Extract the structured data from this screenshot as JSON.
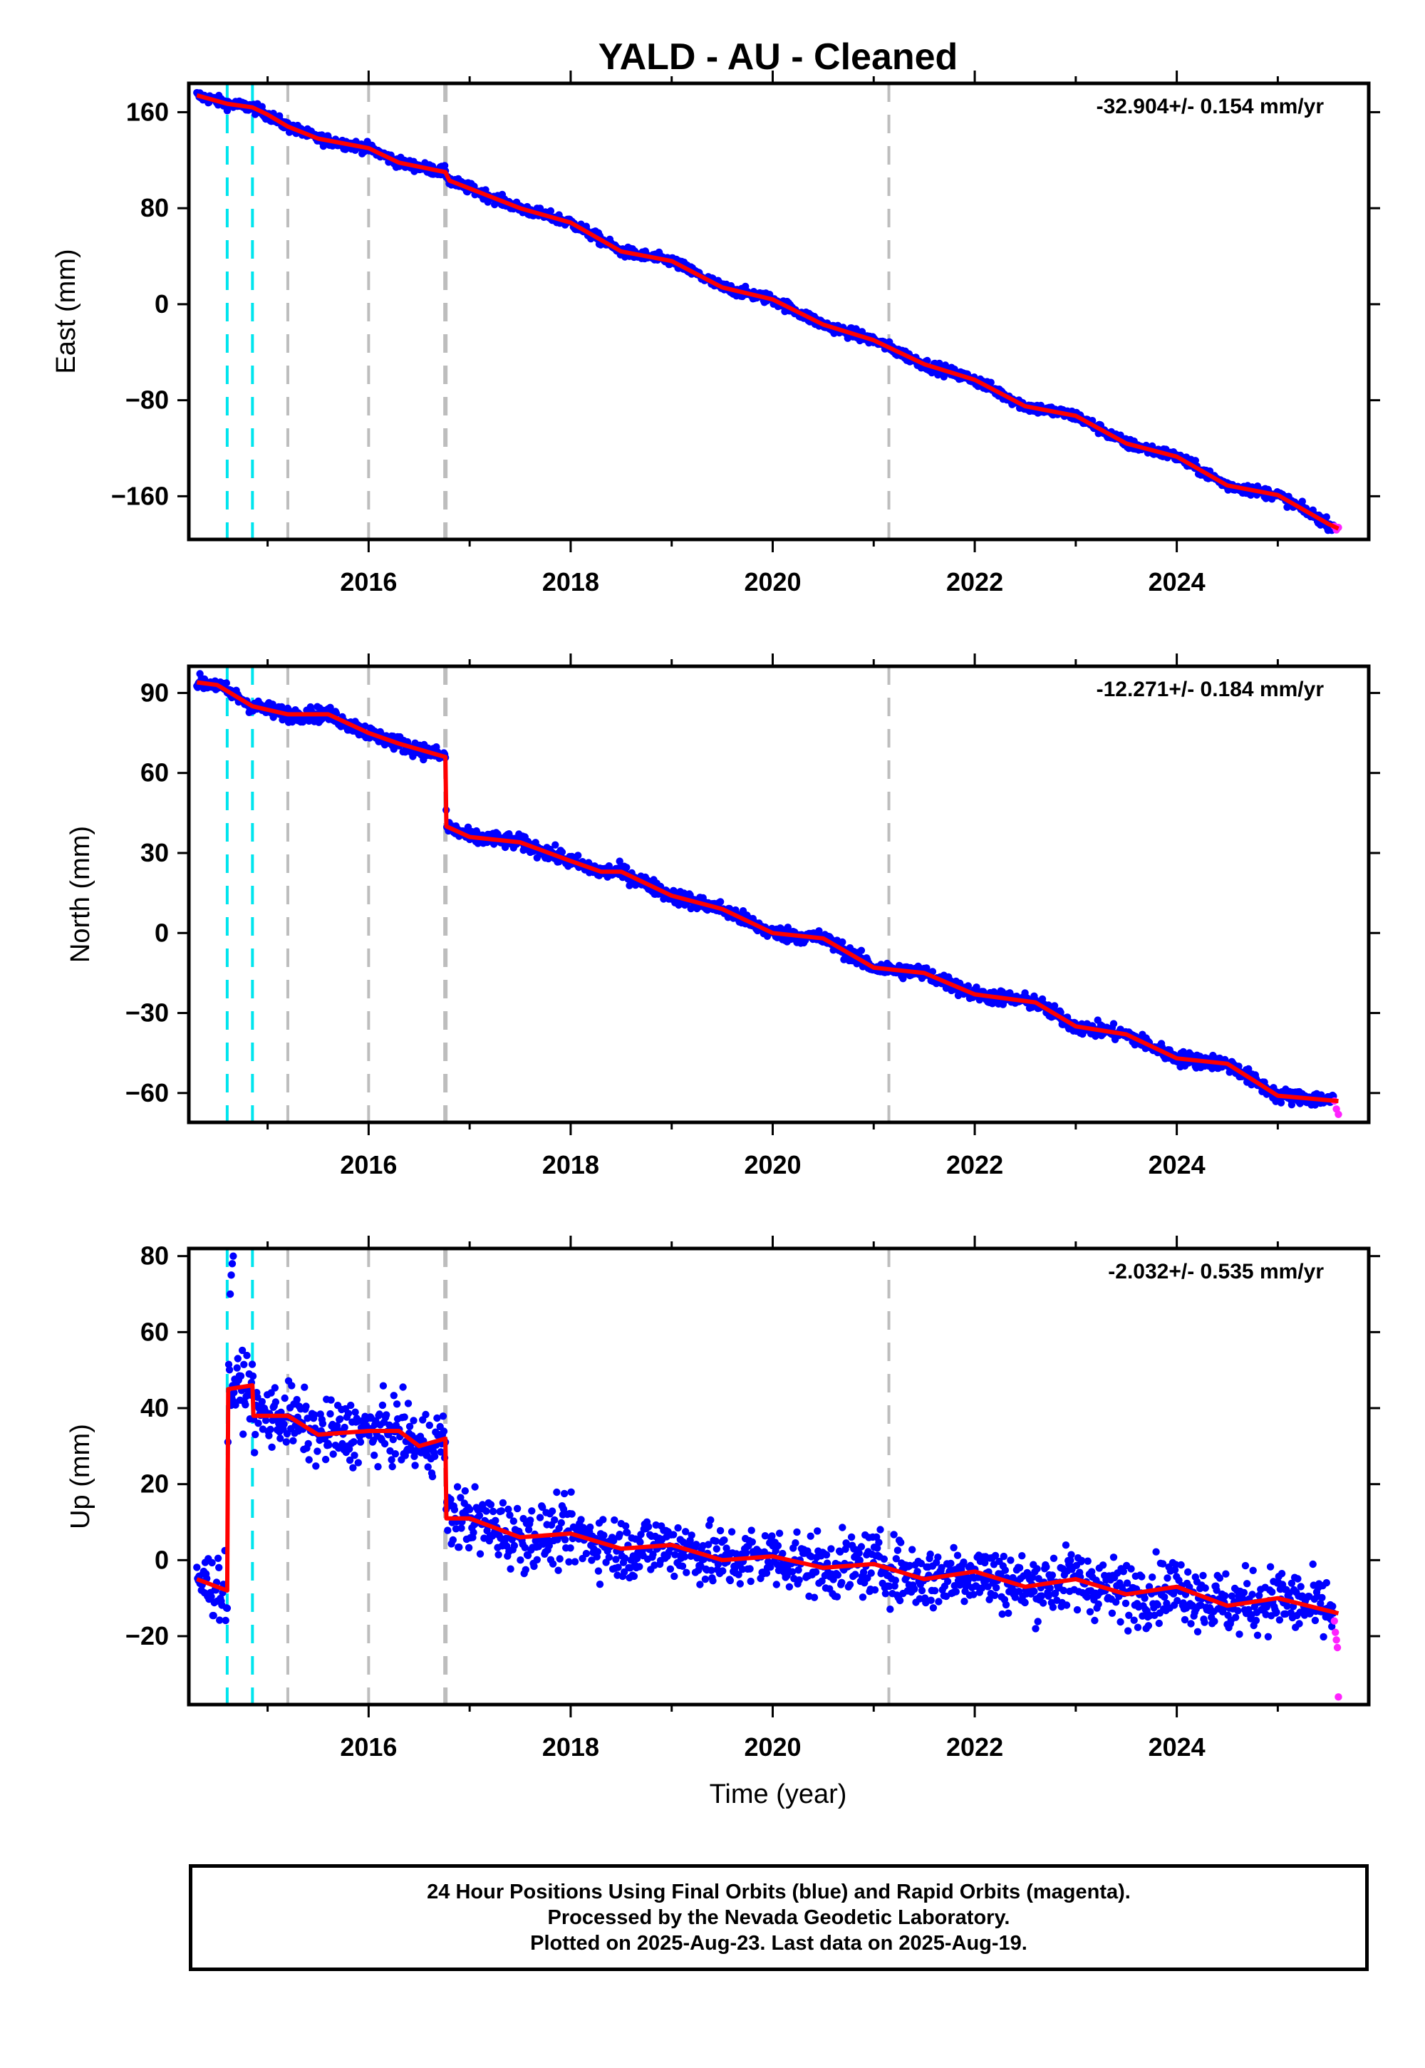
{
  "title": "YALD  - AU - Cleaned",
  "colors": {
    "final_orbits": "#0000ff",
    "rapid_orbits": "#ff22ff",
    "model": "#ff0000",
    "antenna_change": "#00e5ee",
    "event_line": "#bdbdbd",
    "frame": "#000000"
  },
  "chart_data": [
    {
      "type": "scatter",
      "component": "east",
      "ylabel": "East (mm)",
      "rate_label": "-32.904+/- 0.154 mm/yr",
      "xlim": [
        2014.22,
        2025.9
      ],
      "ylim": [
        -196,
        184
      ],
      "yticks": [
        -160,
        -80,
        0,
        80,
        160
      ],
      "xticks": [
        2016,
        2018,
        2020,
        2022,
        2024
      ],
      "xtick_labels": [
        "2016",
        "2018",
        "2020",
        "2022",
        "2024"
      ],
      "antenna_lines": [
        2014.6,
        2014.85
      ],
      "event_lines": [
        2015.2,
        2016.0,
        2016.76,
        2021.15
      ],
      "noise_mm": 2.2,
      "model": {
        "x": [
          2014.3,
          2014.6,
          2014.85,
          2015.0,
          2015.2,
          2015.5,
          2016.0,
          2016.1,
          2016.3,
          2016.76,
          2016.8,
          2017.5,
          2018.0,
          2018.5,
          2019.0,
          2019.5,
          2020.0,
          2020.5,
          2021.0,
          2021.5,
          2022.0,
          2022.5,
          2023.0,
          2023.5,
          2024.0,
          2024.5,
          2025.0,
          2025.5,
          2025.6
        ],
        "y": [
          174,
          167,
          164,
          158,
          148,
          138,
          130,
          126,
          118,
          110,
          103,
          80,
          68,
          44,
          36,
          14,
          4,
          -17,
          -30,
          -50,
          -63,
          -85,
          -93,
          -116,
          -127,
          -151,
          -159,
          -183,
          -187
        ]
      },
      "rapid": {
        "x": [
          2025.56,
          2025.58,
          2025.6
        ],
        "y": [
          -185,
          -188,
          -186
        ]
      }
    },
    {
      "type": "scatter",
      "component": "north",
      "ylabel": "North (mm)",
      "rate_label": "-12.271+/- 0.184 mm/yr",
      "xlim": [
        2014.22,
        2025.9
      ],
      "ylim": [
        -71,
        100
      ],
      "yticks": [
        -60,
        -30,
        0,
        30,
        60,
        90
      ],
      "xticks": [
        2016,
        2018,
        2020,
        2022,
        2024
      ],
      "xtick_labels": [
        "2016",
        "2018",
        "2020",
        "2022",
        "2024"
      ],
      "antenna_lines": [
        2014.6,
        2014.85
      ],
      "event_lines": [
        2015.2,
        2016.0,
        2016.76,
        2021.15
      ],
      "noise_mm": 1.4,
      "model": {
        "x": [
          2014.3,
          2014.5,
          2014.85,
          2015.2,
          2015.6,
          2016.0,
          2016.3,
          2016.76,
          2016.77,
          2017.0,
          2017.5,
          2018.0,
          2018.3,
          2018.5,
          2019.0,
          2019.5,
          2020.0,
          2020.5,
          2021.0,
          2021.5,
          2022.0,
          2022.6,
          2023.0,
          2023.5,
          2024.0,
          2024.5,
          2025.0,
          2025.6
        ],
        "y": [
          94,
          93,
          85,
          82,
          82,
          75,
          71,
          66,
          40,
          36,
          34,
          27,
          23,
          23,
          14,
          9,
          0,
          -2,
          -13,
          -15,
          -23,
          -26,
          -35,
          -38,
          -47,
          -49,
          -61,
          -63
        ]
      },
      "rapid": {
        "x": [
          2025.56,
          2025.58,
          2025.6
        ],
        "y": [
          -63,
          -66,
          -68
        ]
      }
    },
    {
      "type": "scatter",
      "component": "up",
      "ylabel": "Up (mm)",
      "xlabel": "Time (year)",
      "rate_label": "-2.032+/- 0.535 mm/yr",
      "xlim": [
        2014.22,
        2025.9
      ],
      "ylim": [
        -38,
        82
      ],
      "yticks": [
        -20,
        0,
        20,
        40,
        60,
        80
      ],
      "xticks": [
        2016,
        2018,
        2020,
        2022,
        2024
      ],
      "xtick_labels": [
        "2016",
        "2018",
        "2020",
        "2022",
        "2024"
      ],
      "antenna_lines": [
        2014.6,
        2014.85
      ],
      "event_lines": [
        2015.2,
        2016.0,
        2016.76,
        2021.15
      ],
      "noise_mm": 4.2,
      "model": {
        "x": [
          2014.3,
          2014.5,
          2014.6,
          2014.61,
          2014.85,
          2014.86,
          2015.2,
          2015.5,
          2016.0,
          2016.3,
          2016.5,
          2016.76,
          2016.77,
          2017.0,
          2017.5,
          2018.0,
          2018.5,
          2019.0,
          2019.5,
          2020.0,
          2020.5,
          2021.0,
          2021.5,
          2022.0,
          2022.5,
          2023.0,
          2023.5,
          2024.0,
          2024.5,
          2025.0,
          2025.6
        ],
        "y": [
          -5,
          -7,
          -8,
          45,
          46,
          38,
          38,
          33,
          34,
          34,
          30,
          32,
          11,
          11,
          6,
          7,
          3,
          4,
          0,
          1,
          -2,
          -1,
          -5,
          -3,
          -7,
          -5,
          -9,
          -7,
          -12,
          -10,
          -14
        ]
      },
      "outliers": {
        "x": [
          2014.63,
          2014.64,
          2014.65,
          2014.66
        ],
        "y": [
          70,
          75,
          78,
          80
        ]
      },
      "rapid": {
        "x": [
          2025.56,
          2025.57,
          2025.58,
          2025.59,
          2025.6
        ],
        "y": [
          -16,
          -19,
          -21,
          -23,
          -36
        ]
      }
    }
  ],
  "footer": {
    "line1": "24 Hour Positions Using Final Orbits (blue) and Rapid Orbits (magenta).",
    "line2": "Processed by the Nevada Geodetic Laboratory.",
    "line3": "Plotted on 2025-Aug-23. Last data on 2025-Aug-19."
  }
}
